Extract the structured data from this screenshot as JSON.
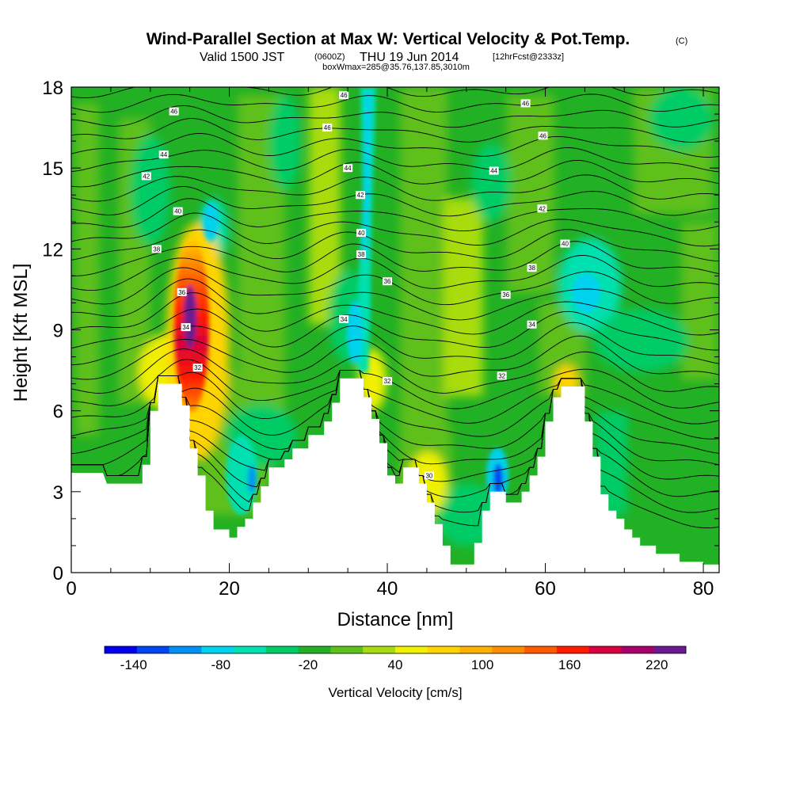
{
  "header": {
    "title": "Wind-Parallel Section at Max W: Vertical Velocity & Pot.Temp.",
    "copyright": "(C)",
    "valid_prefix": "Valid 1500 JST",
    "valid_utc": "(0600Z)",
    "valid_date": "THU 19 Jun 2014",
    "forecast": "[12hrFcst@2333z]",
    "box_info": "boxWmax=285@35.76,137.85,3010m"
  },
  "chart_data": {
    "type": "heatmap",
    "title": "Wind-Parallel Section at Max W: Vertical Velocity & Pot.Temp.",
    "xlabel": "Distance [nm]",
    "ylabel": "Height [Kft MSL]",
    "xlim": [
      0,
      82
    ],
    "ylim": [
      0,
      18
    ],
    "x_ticks": [
      0,
      20,
      40,
      60,
      80
    ],
    "y_ticks": [
      0,
      3,
      6,
      9,
      12,
      15,
      18
    ],
    "colorbar": {
      "label": "Vertical Velocity [cm/s]",
      "tick_values": [
        -140,
        -80,
        -20,
        40,
        100,
        160,
        220
      ],
      "bounds": [
        -160,
        240
      ],
      "colors": [
        "#0000ee",
        "#0045f0",
        "#0090f4",
        "#00d2ee",
        "#00e0b0",
        "#00cc66",
        "#22b024",
        "#5ec01a",
        "#a8dc10",
        "#f0f000",
        "#ffd400",
        "#ffb000",
        "#ff8c00",
        "#ff5a00",
        "#ff1a00",
        "#d8003c",
        "#a8006a",
        "#6a1a90"
      ]
    },
    "terrain": [
      [
        0,
        3.7
      ],
      [
        4,
        3.7
      ],
      [
        4.5,
        3.3
      ],
      [
        9,
        3.3
      ],
      [
        9,
        4
      ],
      [
        10,
        4
      ],
      [
        10,
        6
      ],
      [
        11,
        6
      ],
      [
        11,
        7
      ],
      [
        14,
        7
      ],
      [
        14,
        6.2
      ],
      [
        15,
        6.2
      ],
      [
        15,
        4.6
      ],
      [
        16,
        4.6
      ],
      [
        16,
        3.6
      ],
      [
        17,
        3.6
      ],
      [
        17,
        2.3
      ],
      [
        18,
        2.3
      ],
      [
        18,
        1.6
      ],
      [
        20,
        1.6
      ],
      [
        20,
        1.3
      ],
      [
        21,
        1.3
      ],
      [
        21,
        1.7
      ],
      [
        22,
        1.7
      ],
      [
        22,
        2
      ],
      [
        23,
        2
      ],
      [
        23,
        2.6
      ],
      [
        24,
        2.6
      ],
      [
        24,
        3.2
      ],
      [
        25,
        3.2
      ],
      [
        25,
        3.9
      ],
      [
        27,
        3.9
      ],
      [
        27,
        4.2
      ],
      [
        28,
        4.2
      ],
      [
        28,
        4.6
      ],
      [
        30,
        4.6
      ],
      [
        30,
        5.1
      ],
      [
        32,
        5.1
      ],
      [
        32,
        5.6
      ],
      [
        33,
        5.6
      ],
      [
        33,
        6.3
      ],
      [
        34,
        6.3
      ],
      [
        34,
        7.2
      ],
      [
        37,
        7.2
      ],
      [
        37,
        6.5
      ],
      [
        38,
        6.5
      ],
      [
        38,
        5.7
      ],
      [
        39,
        5.7
      ],
      [
        39,
        4.8
      ],
      [
        40,
        4.8
      ],
      [
        40,
        3.6
      ],
      [
        41,
        3.6
      ],
      [
        41,
        3.3
      ],
      [
        42,
        3.3
      ],
      [
        42,
        3.9
      ],
      [
        44,
        3.9
      ],
      [
        44,
        3.3
      ],
      [
        45,
        3.3
      ],
      [
        45,
        2.6
      ],
      [
        46,
        2.6
      ],
      [
        46,
        1.8
      ],
      [
        47,
        1.8
      ],
      [
        47,
        1
      ],
      [
        48,
        1
      ],
      [
        48,
        0.3
      ],
      [
        51,
        0.3
      ],
      [
        51,
        1.1
      ],
      [
        52,
        1.1
      ],
      [
        52,
        2.3
      ],
      [
        53,
        2.3
      ],
      [
        53,
        3
      ],
      [
        55,
        3
      ],
      [
        55,
        2.6
      ],
      [
        57,
        2.6
      ],
      [
        57,
        3
      ],
      [
        58,
        3
      ],
      [
        58,
        3.6
      ],
      [
        59,
        3.6
      ],
      [
        59,
        4.3
      ],
      [
        60,
        4.3
      ],
      [
        60,
        5.6
      ],
      [
        61,
        5.6
      ],
      [
        61,
        6.5
      ],
      [
        62,
        6.5
      ],
      [
        62,
        6.9
      ],
      [
        65,
        6.9
      ],
      [
        65,
        5.6
      ],
      [
        66,
        5.6
      ],
      [
        66,
        4.3
      ],
      [
        67,
        4.3
      ],
      [
        67,
        2.9
      ],
      [
        68,
        2.9
      ],
      [
        68,
        2.3
      ],
      [
        69,
        2.3
      ],
      [
        69,
        2
      ],
      [
        70,
        2
      ],
      [
        70,
        1.6
      ],
      [
        71,
        1.6
      ],
      [
        71,
        1.3
      ],
      [
        72,
        1.3
      ],
      [
        72,
        1
      ],
      [
        74,
        1
      ],
      [
        74,
        0.7
      ],
      [
        77,
        0.7
      ],
      [
        77,
        0.4
      ],
      [
        80,
        0.4
      ],
      [
        80,
        0.3
      ],
      [
        82,
        0.3
      ]
    ],
    "updraft_core": {
      "x": 15,
      "y": 9.5,
      "max_cm_s": 285
    },
    "isentrope_labels": [
      {
        "x": 13,
        "y": 17.1,
        "v": "46"
      },
      {
        "x": 11.7,
        "y": 15.5,
        "v": "44"
      },
      {
        "x": 9.5,
        "y": 14.7,
        "v": "42"
      },
      {
        "x": 13.5,
        "y": 13.4,
        "v": "40"
      },
      {
        "x": 10.8,
        "y": 12,
        "v": "38"
      },
      {
        "x": 14,
        "y": 10.4,
        "v": "36"
      },
      {
        "x": 14.5,
        "y": 9.1,
        "v": "34"
      },
      {
        "x": 16,
        "y": 7.6,
        "v": "32"
      },
      {
        "x": 34.5,
        "y": 17.7,
        "v": "46"
      },
      {
        "x": 32.4,
        "y": 16.5,
        "v": "46"
      },
      {
        "x": 35,
        "y": 15.0,
        "v": "44"
      },
      {
        "x": 36.6,
        "y": 14.0,
        "v": "42"
      },
      {
        "x": 36.7,
        "y": 12.6,
        "v": "40"
      },
      {
        "x": 36.7,
        "y": 11.8,
        "v": "38"
      },
      {
        "x": 40,
        "y": 10.8,
        "v": "36"
      },
      {
        "x": 34.5,
        "y": 9.4,
        "v": "34"
      },
      {
        "x": 40,
        "y": 7.1,
        "v": "32"
      },
      {
        "x": 45.3,
        "y": 3.6,
        "v": "30"
      },
      {
        "x": 57.5,
        "y": 17.4,
        "v": "46"
      },
      {
        "x": 59.7,
        "y": 16.2,
        "v": "46"
      },
      {
        "x": 53.5,
        "y": 14.9,
        "v": "44"
      },
      {
        "x": 59.6,
        "y": 13.5,
        "v": "42"
      },
      {
        "x": 62.5,
        "y": 12.2,
        "v": "40"
      },
      {
        "x": 58.3,
        "y": 11.3,
        "v": "38"
      },
      {
        "x": 55,
        "y": 10.3,
        "v": "36"
      },
      {
        "x": 58.3,
        "y": 9.2,
        "v": "34"
      },
      {
        "x": 54.5,
        "y": 7.3,
        "v": "32"
      }
    ]
  }
}
